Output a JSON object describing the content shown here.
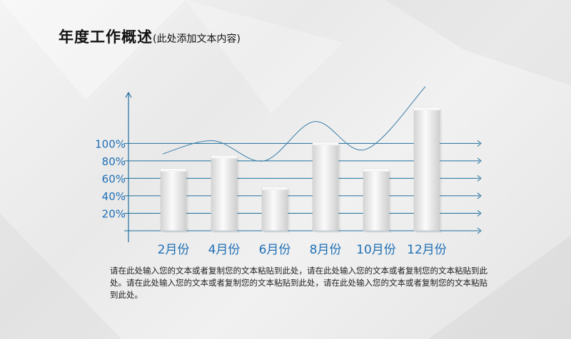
{
  "slide": {
    "title": "年度工作概述",
    "subtitle": "(此处添加文本内容)",
    "description": "请在此处输入您的文本或者复制您的文本粘贴到此处，请在此处输入您的文本或者复制您的文本粘贴到此处。请在此处输入您的文本或者复制您的文本粘贴到此处，请在此处输入您的文本或者复制您的文本粘贴到此处。"
  },
  "colors": {
    "axis": "#1e6f9e",
    "label": "#1f6fb5",
    "curve": "#3a7ea8"
  },
  "chart_data": {
    "type": "bar",
    "categories": [
      "2月份",
      "4月份",
      "6月份",
      "8月份",
      "10月份",
      "12月份"
    ],
    "values": [
      71,
      86,
      50,
      101,
      71,
      141
    ],
    "y_ticks": [
      20,
      40,
      60,
      80,
      100
    ],
    "y_tick_labels": [
      "20%",
      "40%",
      "60%",
      "80%",
      "100%"
    ],
    "ylim": [
      0,
      150
    ],
    "trend_line": [
      88,
      103,
      80,
      125,
      93,
      165
    ],
    "grid": true,
    "legend": "none"
  }
}
